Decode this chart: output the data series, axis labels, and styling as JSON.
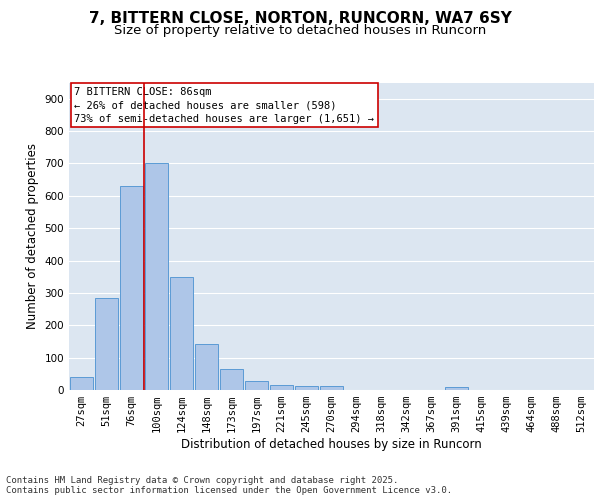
{
  "title_line1": "7, BITTERN CLOSE, NORTON, RUNCORN, WA7 6SY",
  "title_line2": "Size of property relative to detached houses in Runcorn",
  "xlabel": "Distribution of detached houses by size in Runcorn",
  "ylabel": "Number of detached properties",
  "categories": [
    "27sqm",
    "51sqm",
    "76sqm",
    "100sqm",
    "124sqm",
    "148sqm",
    "173sqm",
    "197sqm",
    "221sqm",
    "245sqm",
    "270sqm",
    "294sqm",
    "318sqm",
    "342sqm",
    "367sqm",
    "391sqm",
    "415sqm",
    "439sqm",
    "464sqm",
    "488sqm",
    "512sqm"
  ],
  "values": [
    40,
    283,
    630,
    700,
    350,
    143,
    65,
    28,
    15,
    11,
    11,
    0,
    0,
    0,
    0,
    8,
    0,
    0,
    0,
    0,
    0
  ],
  "bar_color": "#aec6e8",
  "bar_edge_color": "#5b9bd5",
  "background_color": "#dce6f1",
  "grid_color": "#ffffff",
  "annotation_box_text": "7 BITTERN CLOSE: 86sqm\n← 26% of detached houses are smaller (598)\n73% of semi-detached houses are larger (1,651) →",
  "annotation_box_color": "#cc0000",
  "vline_x": 2.5,
  "vline_color": "#cc0000",
  "ylim": [
    0,
    950
  ],
  "yticks": [
    0,
    100,
    200,
    300,
    400,
    500,
    600,
    700,
    800,
    900
  ],
  "footer_text": "Contains HM Land Registry data © Crown copyright and database right 2025.\nContains public sector information licensed under the Open Government Licence v3.0.",
  "title_fontsize": 11,
  "subtitle_fontsize": 9.5,
  "axis_label_fontsize": 8.5,
  "tick_fontsize": 7.5,
  "annotation_fontsize": 7.5,
  "footer_fontsize": 6.5
}
